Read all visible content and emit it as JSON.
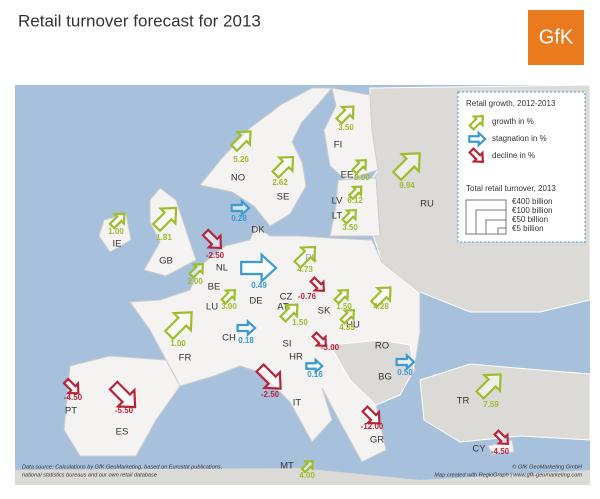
{
  "header": {
    "title": "Retail turnover forecast for 2013",
    "logo": "GfK"
  },
  "legend": {
    "title": "Retail growth, 2012-2013",
    "items": [
      {
        "label": "growth in %",
        "color": "#9dbd2d"
      },
      {
        "label": "stagnation in %",
        "color": "#3b9ad2"
      },
      {
        "label": "decline in %",
        "color": "#b5253a"
      }
    ],
    "size_title": "Total retail turnover, 2013",
    "sizes": [
      "€400 billion",
      "€100 billion",
      "€50 billion",
      "€5 billion"
    ]
  },
  "countries": [
    {
      "code": "NO",
      "value": 5.26,
      "value_label": "5.26",
      "color": "#9dbd2d"
    },
    {
      "code": "SE",
      "value": 2.62,
      "value_label": "2.62",
      "color": "#9dbd2d"
    },
    {
      "code": "FI",
      "value": 3.5,
      "value_label": "3.50",
      "color": "#9dbd2d"
    },
    {
      "code": "EE",
      "value": 9.0,
      "value_label": "9.00",
      "color": "#9dbd2d"
    },
    {
      "code": "LV",
      "value": 6.12,
      "value_label": "6.12",
      "color": "#9dbd2d"
    },
    {
      "code": "LT",
      "value": 3.5,
      "value_label": "3.50",
      "color": "#9dbd2d"
    },
    {
      "code": "RU",
      "value": 9.94,
      "value_label": "9.94",
      "color": "#9dbd2d"
    },
    {
      "code": "IE",
      "value": 1.0,
      "value_label": "1.00",
      "color": "#9dbd2d"
    },
    {
      "code": "GB",
      "value": 1.81,
      "value_label": "1.81",
      "color": "#9dbd2d"
    },
    {
      "code": "DK",
      "value": 0.28,
      "value_label": "0.28",
      "color": "#3b9ad2"
    },
    {
      "code": "NL",
      "value": -2.5,
      "value_label": "-2.50",
      "color": "#b5253a"
    },
    {
      "code": "BE",
      "value": 2.0,
      "value_label": "2.00",
      "color": "#9dbd2d"
    },
    {
      "code": "LU",
      "value": 3.0,
      "value_label": "3.00",
      "color": "#9dbd2d"
    },
    {
      "code": "DE",
      "value": 0.49,
      "value_label": "0.49",
      "color": "#3b9ad2"
    },
    {
      "code": "PL",
      "value": 4.73,
      "value_label": "4.73",
      "color": "#9dbd2d"
    },
    {
      "code": "CZ",
      "value": -0.76,
      "value_label": "-0.76",
      "color": "#b5253a"
    },
    {
      "code": "SK",
      "value": 1.5,
      "value_label": "1.50",
      "color": "#9dbd2d"
    },
    {
      "code": "AT",
      "value": 1.5,
      "value_label": "1.50",
      "color": "#9dbd2d"
    },
    {
      "code": "HU",
      "value": 4.35,
      "value_label": "4.35",
      "color": "#9dbd2d"
    },
    {
      "code": "RO",
      "value": 4.28,
      "value_label": "4.28",
      "color": "#9dbd2d"
    },
    {
      "code": "FR",
      "value": 1.0,
      "value_label": "1.00",
      "color": "#9dbd2d"
    },
    {
      "code": "CH",
      "value": 0.18,
      "value_label": "0.18",
      "color": "#3b9ad2"
    },
    {
      "code": "SI",
      "value": -3.0,
      "value_label": "-3.00",
      "color": "#b5253a"
    },
    {
      "code": "HR",
      "value": 0.16,
      "value_label": "0.16",
      "color": "#3b9ad2"
    },
    {
      "code": "BG",
      "value": 0.5,
      "value_label": "0.50",
      "color": "#3b9ad2"
    },
    {
      "code": "PT",
      "value": -4.5,
      "value_label": "-4.50",
      "color": "#b5253a"
    },
    {
      "code": "ES",
      "value": -5.5,
      "value_label": "-5.50",
      "color": "#b5253a"
    },
    {
      "code": "IT",
      "value": -2.5,
      "value_label": "-2.50",
      "color": "#b5253a"
    },
    {
      "code": "TR",
      "value": 7.59,
      "value_label": "7.59",
      "color": "#9dbd2d"
    },
    {
      "code": "GR",
      "value": -12.0,
      "value_label": "-12.00",
      "color": "#b5253a"
    },
    {
      "code": "CY",
      "value": -4.5,
      "value_label": "-4.50",
      "color": "#b5253a"
    },
    {
      "code": "MT",
      "value": 4.0,
      "value_label": "4.00",
      "color": "#9dbd2d"
    }
  ],
  "footer": {
    "source_1": "Data source: Calculations by GfK GeoMarketing, based on Eurostat publications,",
    "source_2": "national statistics bureaus and our own retail database",
    "copyright": "© GfK GeoMarketing GmbH",
    "credit": "Map created with RegioGraph | www.gfk-geomarketing.com"
  }
}
